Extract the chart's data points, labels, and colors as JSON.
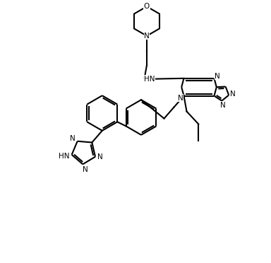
{
  "bg": "#ffffff",
  "lc": "#000000",
  "lw": 1.5,
  "fs": 7.5,
  "dpi": 100,
  "xlim": [
    0,
    9.6
  ],
  "ylim": [
    0,
    9.3
  ]
}
